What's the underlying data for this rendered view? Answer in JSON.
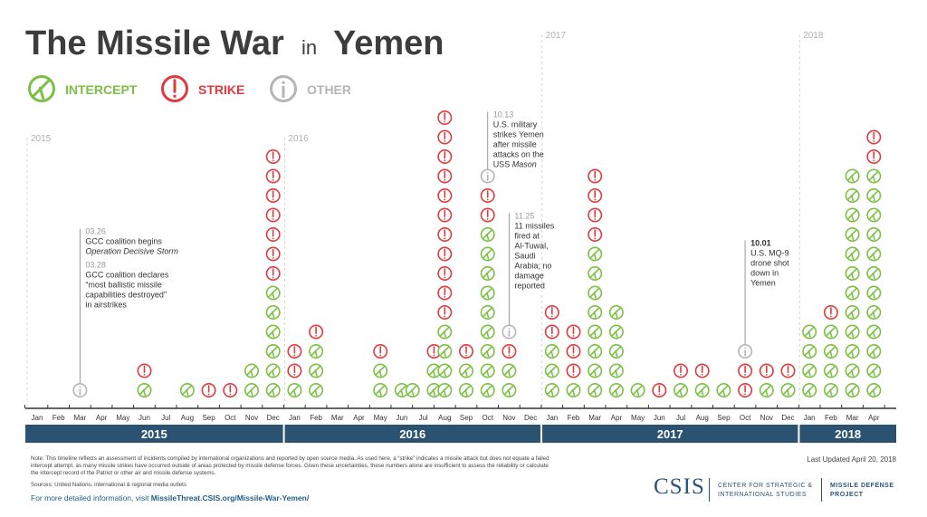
{
  "title": {
    "main": "The Missile War",
    "in": "in",
    "country": "Yemen"
  },
  "legend": [
    {
      "key": "intercept",
      "label": "INTERCEPT",
      "color": "#7ac143"
    },
    {
      "key": "strike",
      "label": "STRIKE",
      "color": "#e03a3e"
    },
    {
      "key": "other",
      "label": "OTHER",
      "color": "#b5b5b5"
    }
  ],
  "chart_data": {
    "type": "dot-timeline",
    "title": "The Missile War in Yemen",
    "y_unit": "missile attacks per month",
    "months": [
      "Jan",
      "Feb",
      "Mar",
      "Apr",
      "May",
      "Jun",
      "Jul",
      "Aug",
      "Sep",
      "Oct",
      "Nov",
      "Dec",
      "Jan",
      "Feb",
      "Mar",
      "Apr",
      "May",
      "Jun",
      "Jul",
      "Aug",
      "Sep",
      "Oct",
      "Nov",
      "Dec",
      "Jan",
      "Feb",
      "Mar",
      "Apr",
      "May",
      "Jun",
      "Jul",
      "Aug",
      "Sep",
      "Oct",
      "Nov",
      "Dec",
      "Jan",
      "Feb",
      "Mar",
      "Apr"
    ],
    "years": [
      {
        "label": "2015",
        "start": 0,
        "end": 12
      },
      {
        "label": "2016",
        "start": 12,
        "end": 24
      },
      {
        "label": "2017",
        "start": 24,
        "end": 36
      },
      {
        "label": "2018",
        "start": 36,
        "end": 40
      }
    ],
    "year_markers": [
      {
        "label": "2015",
        "index": 0
      },
      {
        "label": "2016",
        "index": 12
      },
      {
        "label": "2017",
        "index": 24
      },
      {
        "label": "2018",
        "index": 36
      }
    ],
    "series_colors": {
      "intercept": "#7ac143",
      "strike": "#e03a3e",
      "other": "#b5b5b5"
    },
    "data": [
      {
        "month": "2015-01",
        "columns": []
      },
      {
        "month": "2015-02",
        "columns": []
      },
      {
        "month": "2015-03",
        "columns": [
          {
            "offset": 0,
            "stack": [
              "other"
            ]
          }
        ]
      },
      {
        "month": "2015-04",
        "columns": []
      },
      {
        "month": "2015-05",
        "columns": []
      },
      {
        "month": "2015-06",
        "columns": [
          {
            "offset": 0,
            "stack": [
              "intercept",
              "strike"
            ]
          }
        ]
      },
      {
        "month": "2015-07",
        "columns": []
      },
      {
        "month": "2015-08",
        "columns": [
          {
            "offset": 0,
            "stack": [
              "intercept"
            ]
          }
        ]
      },
      {
        "month": "2015-09",
        "columns": [
          {
            "offset": 0,
            "stack": [
              "strike"
            ]
          }
        ]
      },
      {
        "month": "2015-10",
        "columns": [
          {
            "offset": 0,
            "stack": [
              "strike"
            ]
          }
        ]
      },
      {
        "month": "2015-11",
        "columns": [
          {
            "offset": 0,
            "stack": [
              "intercept",
              "intercept"
            ]
          }
        ]
      },
      {
        "month": "2015-12",
        "columns": [
          {
            "offset": 0,
            "stack": [
              "intercept",
              "intercept",
              "intercept",
              "intercept",
              "intercept",
              "intercept",
              "strike",
              "strike",
              "strike",
              "strike",
              "strike",
              "strike",
              "strike"
            ]
          }
        ]
      },
      {
        "month": "2016-01",
        "columns": [
          {
            "offset": 0,
            "stack": [
              "intercept",
              "strike",
              "strike"
            ]
          }
        ]
      },
      {
        "month": "2016-02",
        "columns": [
          {
            "offset": 0,
            "stack": [
              "intercept",
              "intercept",
              "intercept",
              "strike"
            ]
          }
        ]
      },
      {
        "month": "2016-03",
        "columns": []
      },
      {
        "month": "2016-04",
        "columns": []
      },
      {
        "month": "2016-05",
        "columns": [
          {
            "offset": 0,
            "stack": [
              "intercept",
              "intercept",
              "strike"
            ]
          }
        ]
      },
      {
        "month": "2016-06",
        "columns": [
          {
            "offset": 0,
            "stack": [
              "intercept"
            ]
          }
        ]
      },
      {
        "month": "2016-07",
        "columns": [
          {
            "offset": -0.5,
            "stack": [
              "intercept"
            ]
          },
          {
            "offset": 0.5,
            "stack": [
              "intercept",
              "intercept",
              "strike"
            ]
          }
        ]
      },
      {
        "month": "2016-08",
        "columns": [
          {
            "offset": 0,
            "stack": [
              "intercept",
              "intercept",
              "intercept",
              "intercept",
              "strike",
              "strike",
              "strike",
              "strike",
              "strike",
              "strike",
              "strike",
              "strike",
              "strike",
              "strike",
              "strike"
            ]
          }
        ]
      },
      {
        "month": "2016-09",
        "columns": [
          {
            "offset": 0,
            "stack": [
              "intercept",
              "intercept",
              "strike"
            ]
          }
        ]
      },
      {
        "month": "2016-10",
        "columns": [
          {
            "offset": 0,
            "stack": [
              "intercept",
              "intercept",
              "intercept",
              "intercept",
              "intercept",
              "intercept",
              "intercept",
              "intercept",
              "intercept",
              "strike",
              "strike",
              "other"
            ]
          }
        ]
      },
      {
        "month": "2016-11",
        "columns": [
          {
            "offset": 0,
            "stack": [
              "intercept",
              "intercept",
              "strike",
              "other"
            ]
          }
        ]
      },
      {
        "month": "2016-12",
        "columns": []
      },
      {
        "month": "2017-01",
        "columns": [
          {
            "offset": 0,
            "stack": [
              "intercept",
              "intercept",
              "intercept",
              "strike",
              "strike"
            ]
          }
        ]
      },
      {
        "month": "2017-02",
        "columns": [
          {
            "offset": 0,
            "stack": [
              "intercept",
              "strike",
              "strike",
              "strike"
            ]
          }
        ]
      },
      {
        "month": "2017-03",
        "columns": [
          {
            "offset": 0,
            "stack": [
              "intercept",
              "intercept",
              "intercept",
              "intercept",
              "intercept",
              "intercept",
              "intercept",
              "intercept",
              "strike",
              "strike",
              "strike",
              "strike"
            ]
          }
        ]
      },
      {
        "month": "2017-04",
        "columns": [
          {
            "offset": 0,
            "stack": [
              "intercept",
              "intercept",
              "intercept",
              "intercept",
              "intercept"
            ]
          }
        ]
      },
      {
        "month": "2017-05",
        "columns": [
          {
            "offset": 0,
            "stack": [
              "intercept"
            ]
          }
        ]
      },
      {
        "month": "2017-06",
        "columns": [
          {
            "offset": 0,
            "stack": [
              "strike"
            ]
          }
        ]
      },
      {
        "month": "2017-07",
        "columns": [
          {
            "offset": 0,
            "stack": [
              "intercept",
              "strike"
            ]
          }
        ]
      },
      {
        "month": "2017-08",
        "columns": [
          {
            "offset": 0,
            "stack": [
              "intercept",
              "strike"
            ]
          }
        ]
      },
      {
        "month": "2017-09",
        "columns": [
          {
            "offset": 0,
            "stack": [
              "intercept"
            ]
          }
        ]
      },
      {
        "month": "2017-10",
        "columns": [
          {
            "offset": 0,
            "stack": [
              "strike",
              "strike",
              "other"
            ]
          }
        ]
      },
      {
        "month": "2017-11",
        "columns": [
          {
            "offset": 0,
            "stack": [
              "intercept",
              "strike"
            ]
          }
        ]
      },
      {
        "month": "2017-12",
        "columns": [
          {
            "offset": 0,
            "stack": [
              "intercept",
              "strike"
            ]
          }
        ]
      },
      {
        "month": "2018-01",
        "columns": [
          {
            "offset": 0,
            "stack": [
              "intercept",
              "intercept",
              "intercept",
              "intercept"
            ]
          }
        ]
      },
      {
        "month": "2018-02",
        "columns": [
          {
            "offset": 0,
            "stack": [
              "intercept",
              "intercept",
              "intercept",
              "intercept",
              "strike"
            ]
          }
        ]
      },
      {
        "month": "2018-03",
        "columns": [
          {
            "offset": 0,
            "stack": [
              "intercept",
              "intercept",
              "intercept",
              "intercept",
              "intercept",
              "intercept",
              "intercept",
              "intercept",
              "intercept",
              "intercept",
              "intercept",
              "intercept"
            ]
          }
        ]
      },
      {
        "month": "2018-04",
        "columns": [
          {
            "offset": 0,
            "stack": [
              "intercept",
              "intercept",
              "intercept",
              "intercept",
              "intercept",
              "intercept",
              "intercept",
              "intercept",
              "intercept",
              "intercept",
              "intercept",
              "intercept",
              "strike",
              "strike"
            ]
          }
        ]
      }
    ],
    "annotations": [
      {
        "index": 2.1,
        "stem_to": 1,
        "label_level": 8.2,
        "lines": [
          {
            "date": "03.26"
          },
          {
            "text": "GCC coalition begins"
          },
          {
            "text": "Operation Decisive Storm",
            "italic": true
          },
          {
            "date": "03.28"
          },
          {
            "text": "GCC coalition declares"
          },
          {
            "text": "“most ballistic missile"
          },
          {
            "text": "capabilities destroyed”"
          },
          {
            "text": "in airstrikes"
          }
        ]
      },
      {
        "index": 21.2,
        "stem_to": 12,
        "label_level": 14.2,
        "lines": [
          {
            "date": "10.13"
          },
          {
            "text": "U.S. military"
          },
          {
            "text": "strikes Yemen"
          },
          {
            "text": "after missile"
          },
          {
            "text": "attacks on the"
          },
          {
            "text": "USS ",
            "italic_suffix": "Mason"
          }
        ]
      },
      {
        "index": 22.2,
        "stem_to": 4,
        "label_level": 9.0,
        "lines": [
          {
            "date": "11.25"
          },
          {
            "text": "11 missiles"
          },
          {
            "text": "fired at"
          },
          {
            "text": "Al-Tuwal,"
          },
          {
            "text": "Saudi"
          },
          {
            "text": "Arabia; no"
          },
          {
            "text": "damage"
          },
          {
            "text": "reported"
          }
        ]
      },
      {
        "index": 33.2,
        "stem_to": 3,
        "label_level": 7.6,
        "lines": [
          {
            "date": "10.01",
            "bold": true
          },
          {
            "text": "U.S. MQ-9"
          },
          {
            "text": "drone shot"
          },
          {
            "text": "down in"
          },
          {
            "text": "Yemen"
          }
        ]
      }
    ]
  },
  "footer": {
    "note": "Note: This timeline reflects an assessment of incidents compiled by international organizations and reported by open source media. As used here, a “strike” indicates a missile attack but does not equate a failed intercept attempt, as many missile strikes have occurred outside of areas protected by missile defense forces.  Given these uncertainties, these numbers alone are insufficient to assess the reliability or calculate the intercept record of the Patriot or other air and missile defense systems.",
    "sources": "Sources: United Nations, international & regional media outlets",
    "more_info_prefix": "For more detailed information, visit",
    "more_info_link": "MissileThreat.CSIS.org/Missile-War-Yemen/",
    "updated": "Last Updated April 20, 2018"
  },
  "branding": {
    "csis": "CSIS",
    "center_line1": "CENTER FOR STRATEGIC &",
    "center_line2": "INTERNATIONAL STUDIES",
    "project_line1": "MISSILE DEFENSE",
    "project_line2": "PROJECT"
  }
}
